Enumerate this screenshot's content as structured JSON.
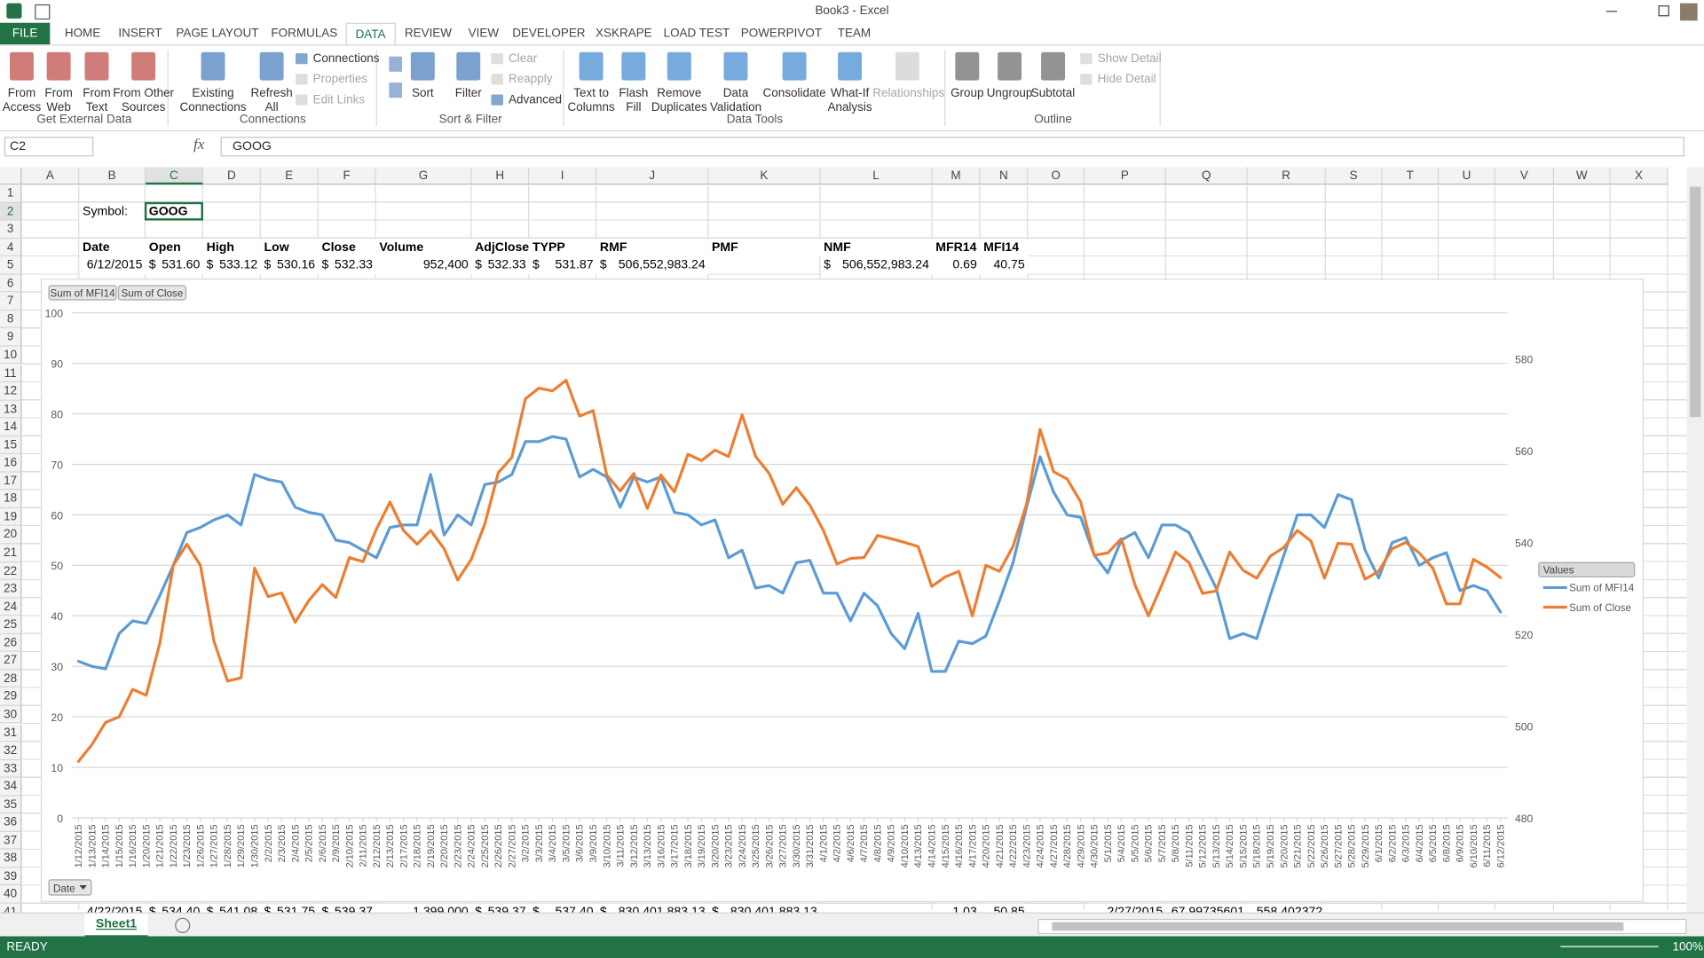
{
  "window": {
    "title": "Book3 - Excel"
  },
  "ribbon": {
    "tabs": [
      "FILE",
      "HOME",
      "INSERT",
      "PAGE LAYOUT",
      "FORMULAS",
      "DATA",
      "REVIEW",
      "VIEW",
      "DEVELOPER",
      "XSKRAPE",
      "LOAD TEST",
      "POWERPIVOT",
      "TEAM"
    ],
    "active_tab": 5,
    "groups": [
      {
        "label": "Get External Data",
        "large": [
          {
            "label": [
              "From",
              "Access"
            ]
          },
          {
            "label": [
              "From",
              "Web"
            ]
          },
          {
            "label": [
              "From",
              "Text"
            ]
          },
          {
            "label": [
              "From Other",
              "Sources"
            ]
          }
        ],
        "small": []
      },
      {
        "label": "Connections",
        "large": [
          {
            "label": [
              "Existing",
              "Connections"
            ]
          },
          {
            "label": [
              "Refresh",
              "All"
            ]
          }
        ],
        "small": [
          {
            "label": "Connections"
          },
          {
            "label": "Properties",
            "disabled": true
          },
          {
            "label": "Edit Links",
            "disabled": true
          }
        ]
      },
      {
        "label": "Sort & Filter",
        "large": [
          {
            "label": [
              "Sort"
            ]
          },
          {
            "label": [
              "Filter"
            ]
          }
        ],
        "small": [
          {
            "label": "Clear",
            "disabled": true
          },
          {
            "label": "Reapply",
            "disabled": true
          },
          {
            "label": "Advanced"
          }
        ]
      },
      {
        "label": "Data Tools",
        "large": [
          {
            "label": [
              "Text to",
              "Columns"
            ]
          },
          {
            "label": [
              "Flash",
              "Fill"
            ]
          },
          {
            "label": [
              "Remove",
              "Duplicates"
            ]
          },
          {
            "label": [
              "Data",
              "Validation"
            ]
          },
          {
            "label": [
              "Consolidate"
            ]
          },
          {
            "label": [
              "What-If",
              "Analysis"
            ]
          },
          {
            "label": [
              "Relationships"
            ],
            "disabled": true
          }
        ],
        "small": []
      },
      {
        "label": "Outline",
        "large": [
          {
            "label": [
              "Group"
            ]
          },
          {
            "label": [
              "Ungroup"
            ]
          },
          {
            "label": [
              "Subtotal"
            ]
          }
        ],
        "small": [
          {
            "label": "Show Detail",
            "disabled": true
          },
          {
            "label": "Hide Detail",
            "disabled": true
          }
        ]
      }
    ]
  },
  "formula_bar": {
    "name_box": "C2",
    "fx": "fx",
    "formula": "GOOG"
  },
  "sheet": {
    "columns": [
      "A",
      "B",
      "C",
      "D",
      "E",
      "F",
      "G",
      "H",
      "I",
      "J",
      "K",
      "L",
      "M",
      "N",
      "O",
      "P",
      "Q",
      "R",
      "S",
      "T",
      "U",
      "V",
      "W",
      "X"
    ],
    "row_numbers": [
      1,
      2,
      3,
      4,
      5,
      6,
      7,
      8,
      9,
      10,
      11,
      12,
      13,
      14,
      15,
      16,
      17,
      18,
      19,
      20,
      21,
      22,
      23,
      24,
      25,
      26,
      27,
      28,
      29,
      30,
      31,
      32,
      33,
      34,
      35,
      36,
      37,
      38,
      39,
      40,
      41
    ],
    "cells": {
      "2": [
        null,
        "Symbol:",
        "GOOG"
      ],
      "4": [
        null,
        "Date",
        "Open",
        "High",
        "Low",
        "Close",
        "Volume",
        "AdjClose",
        "TYPP",
        "RMF",
        "PMF",
        "NMF",
        "MFR14",
        "MFI14"
      ],
      "5": [
        null,
        "6/12/2015",
        "$ 531.60",
        "$ 533.12",
        "$ 530.16",
        "$ 532.33",
        "952,400",
        "$ 532.33",
        "$ 531.87",
        "$ 506,552,983.24",
        null,
        "$ 506,552,983.24",
        "0.69",
        "40.75"
      ],
      "41": [
        null,
        "4/22/2015",
        "$ 534.40",
        "$ 541.08",
        "$ 531.75",
        "$ 539.37",
        "1,399,000",
        "$ 539.37",
        "$ 537.40",
        "$ 830,401,883.13",
        "$ 830,401,883.13",
        null,
        "1.03",
        "50.85",
        null,
        "2/27/2015",
        "67.99735601",
        "558.402372"
      ]
    },
    "sheet_tab": "Sheet1"
  },
  "status": {
    "mode": "READY",
    "zoom": "100%"
  },
  "chart_data": {
    "type": "line",
    "categories": [
      "1/12/2015",
      "1/13/2015",
      "1/14/2015",
      "1/15/2015",
      "1/16/2015",
      "1/20/2015",
      "1/21/2015",
      "1/22/2015",
      "1/23/2015",
      "1/26/2015",
      "1/27/2015",
      "1/28/2015",
      "1/29/2015",
      "1/30/2015",
      "2/2/2015",
      "2/3/2015",
      "2/4/2015",
      "2/5/2015",
      "2/6/2015",
      "2/9/2015",
      "2/10/2015",
      "2/11/2015",
      "2/12/2015",
      "2/13/2015",
      "2/17/2015",
      "2/18/2015",
      "2/19/2015",
      "2/20/2015",
      "2/23/2015",
      "2/24/2015",
      "2/25/2015",
      "2/26/2015",
      "2/27/2015",
      "3/2/2015",
      "3/3/2015",
      "3/4/2015",
      "3/5/2015",
      "3/6/2015",
      "3/9/2015",
      "3/10/2015",
      "3/11/2015",
      "3/12/2015",
      "3/13/2015",
      "3/16/2015",
      "3/17/2015",
      "3/18/2015",
      "3/19/2015",
      "3/20/2015",
      "3/23/2015",
      "3/24/2015",
      "3/25/2015",
      "3/26/2015",
      "3/27/2015",
      "3/30/2015",
      "3/31/2015",
      "4/1/2015",
      "4/2/2015",
      "4/6/2015",
      "4/7/2015",
      "4/8/2015",
      "4/9/2015",
      "4/10/2015",
      "4/13/2015",
      "4/14/2015",
      "4/15/2015",
      "4/16/2015",
      "4/17/2015",
      "4/20/2015",
      "4/21/2015",
      "4/22/2015",
      "4/23/2015",
      "4/24/2015",
      "4/27/2015",
      "4/28/2015",
      "4/29/2015",
      "4/30/2015",
      "5/1/2015",
      "5/4/2015",
      "5/5/2015",
      "5/6/2015",
      "5/7/2015",
      "5/8/2015",
      "5/11/2015",
      "5/12/2015",
      "5/13/2015",
      "5/14/2015",
      "5/15/2015",
      "5/18/2015",
      "5/19/2015",
      "5/20/2015",
      "5/21/2015",
      "5/22/2015",
      "5/26/2015",
      "5/27/2015",
      "5/28/2015",
      "5/29/2015",
      "6/1/2015",
      "6/2/2015",
      "6/3/2015",
      "6/4/2015",
      "6/5/2015",
      "6/8/2015",
      "6/9/2015",
      "6/10/2015",
      "6/11/2015",
      "6/12/2015"
    ],
    "series": [
      {
        "name": "Sum of MFI14",
        "color": "#5b9bd5",
        "values": [
          31,
          30,
          29.5,
          36.5,
          39,
          38.5,
          44,
          50,
          56.5,
          57.5,
          59,
          60,
          58,
          68,
          67,
          66.5,
          61.5,
          60.5,
          60,
          55,
          54.5,
          53,
          51.5,
          57.5,
          58,
          58,
          68,
          56,
          60,
          58,
          66,
          66.5,
          68,
          74.5,
          74.5,
          75.5,
          75,
          67.5,
          69,
          67.5,
          61.5,
          67.5,
          66.5,
          67.5,
          60.5,
          60,
          58,
          59,
          51.5,
          53,
          45.5,
          46,
          44.5,
          50.5,
          51,
          44.5,
          44.5,
          39,
          44.5,
          42,
          36.5,
          33.5,
          40.5,
          29,
          29,
          35,
          34.5,
          36,
          43,
          50.5,
          61.5,
          71.5,
          64.5,
          60,
          59.5,
          52,
          48.5,
          55,
          56.5,
          51.5,
          58,
          58,
          56.5,
          51,
          45.5,
          35.5,
          36.5,
          35.5,
          44,
          52,
          60,
          60,
          57.5,
          64,
          63,
          53,
          47.5,
          54.5,
          55.5,
          50,
          51.5,
          52.5,
          45,
          46,
          45,
          40.75
        ]
      },
      {
        "name": "Sum of Close",
        "color": "#ed7d31",
        "axis": "y2",
        "values": [
          492.3,
          496,
          500.8,
          502,
          508,
          506.7,
          518,
          535,
          539.6,
          535,
          518.5,
          509.8,
          510.5,
          534.4,
          528.2,
          529,
          522.6,
          527.3,
          530.8,
          528,
          536.7,
          535.8,
          542.9,
          548.8,
          542.6,
          539.6,
          542.6,
          538.6,
          531.8,
          536.3,
          544,
          555.2,
          558.5,
          571.3,
          573.6,
          573,
          575.3,
          567.5,
          568.7,
          554.7,
          551.2,
          555,
          547.4,
          554.7,
          551,
          559.2,
          557.8,
          560.1,
          558.7,
          567.8,
          558.7,
          555,
          548.3,
          551.9,
          548.1,
          542.6,
          535.3,
          536.5,
          536.7,
          541.5,
          540.8,
          540,
          539.1,
          530.4,
          532.5,
          533.7,
          524,
          535,
          533.7,
          539.1,
          548.3,
          564.6,
          555.4,
          553.8,
          548.8,
          537.2,
          537.7,
          540.8,
          530.8,
          524,
          530.8,
          537.9,
          535.6,
          528.9,
          529.4,
          537.9,
          533.9,
          532.2,
          537,
          538.9,
          542.6,
          540.3,
          532.2,
          539.8,
          539.6,
          532,
          533.7,
          538.6,
          540,
          537.7,
          534.4,
          526.6,
          526.6,
          536.3,
          534.6,
          532.33
        ]
      }
    ],
    "ylim": [
      0,
      100
    ],
    "yticks": [
      0,
      10,
      20,
      30,
      40,
      50,
      60,
      70,
      80,
      90,
      100
    ],
    "y2lim": [
      480,
      590
    ],
    "y2ticks": [
      480,
      500,
      520,
      540,
      560,
      580
    ],
    "grid": true,
    "legend": "right",
    "legend_title": "Values",
    "x_field": "Date"
  }
}
